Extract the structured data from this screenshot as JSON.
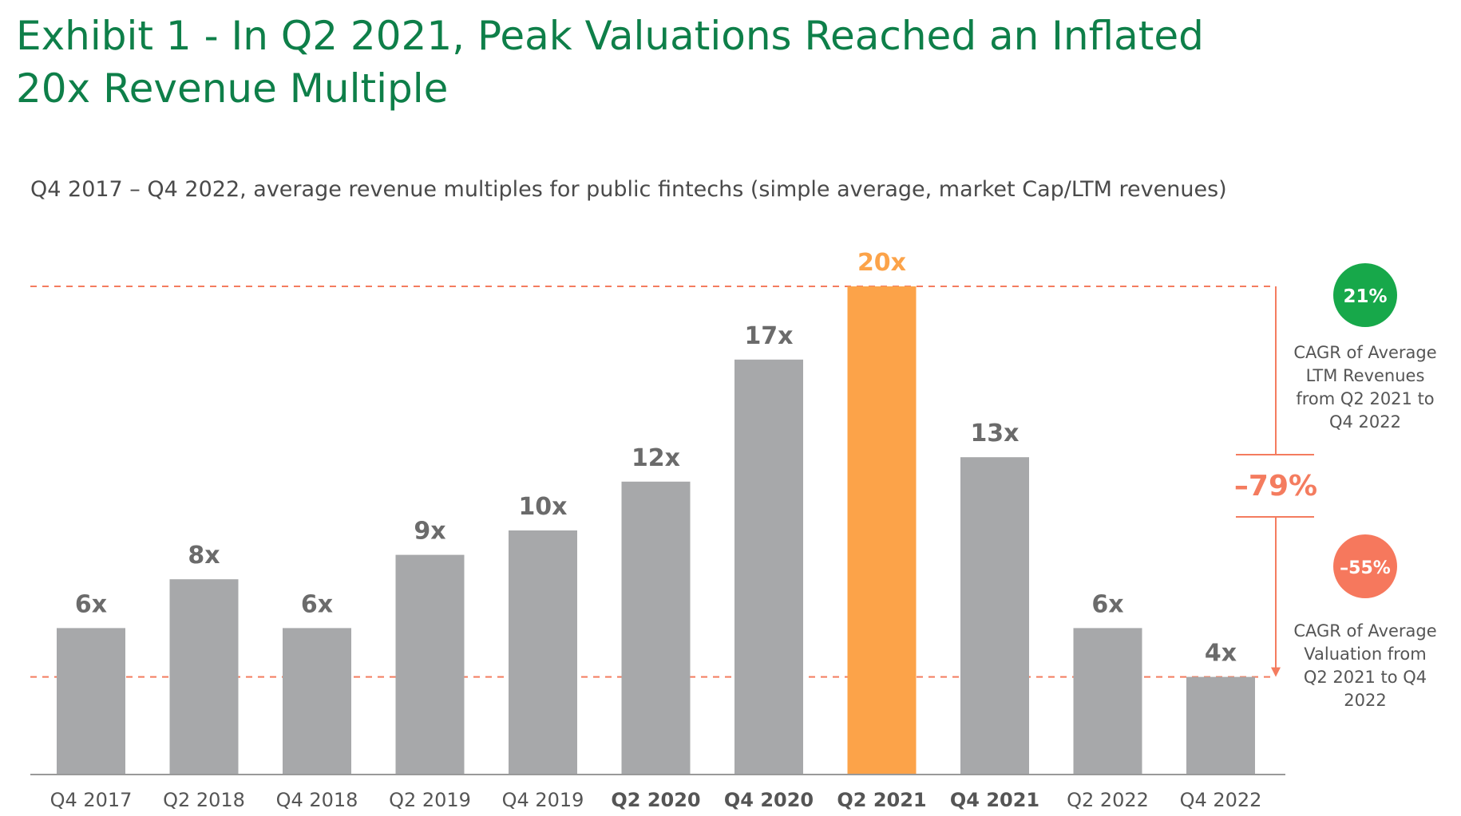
{
  "header": {
    "title_line1": "Exhibit 1 - In Q2 2021, Peak Valuations Reached an Inflated",
    "title_line2": "20x Revenue Multiple",
    "subtitle": "Q4 2017 – Q4 2022, average revenue multiples for public fintechs (simple average, market Cap/LTM revenues)"
  },
  "chart_data": {
    "type": "bar",
    "categories": [
      "Q4 2017",
      "Q2 2018",
      "Q4 2018",
      "Q2 2019",
      "Q4 2019",
      "Q2 2020",
      "Q4 2020",
      "Q2 2021",
      "Q4 2021",
      "Q2 2022",
      "Q4 2022"
    ],
    "values": [
      6,
      8,
      6,
      9,
      10,
      12,
      17,
      20,
      13,
      6,
      4
    ],
    "value_labels": [
      "6x",
      "8x",
      "6x",
      "9x",
      "10x",
      "12x",
      "17x",
      "20x",
      "13x",
      "6x",
      "4x"
    ],
    "bold_categories": [
      "Q2 2020",
      "Q4 2020",
      "Q2 2021",
      "Q4 2021"
    ],
    "highlight_category": "Q2 2021",
    "bar_color": "#a7a8aa",
    "highlight_color": "#fca349",
    "value_label_color": "#6b6b6b",
    "reference_line_color": "#f47c5f",
    "reference_lines": [
      20,
      4
    ],
    "ylim": [
      0,
      23
    ],
    "change_annotation": "–79%",
    "change_color": "#f47c5f"
  },
  "side_panel": {
    "revenue_cagr": {
      "value": "21%",
      "color": "#17a84a",
      "label_lines": [
        "CAGR of Average",
        "LTM Revenues",
        "from Q2 2021 to",
        "Q4 2022"
      ]
    },
    "valuation_cagr": {
      "value": "–55%",
      "color": "#f6785d",
      "label_lines": [
        "CAGR of Average",
        "Valuation from",
        "Q2 2021 to Q4",
        "2022"
      ]
    }
  }
}
